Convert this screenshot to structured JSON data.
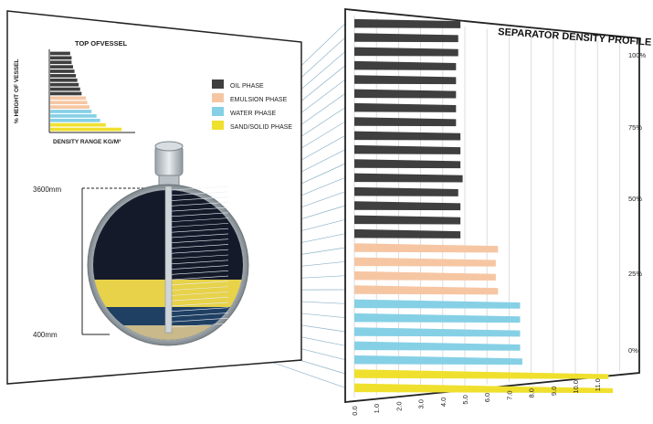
{
  "left_panel": {
    "inset_chart": {
      "title": "TOP OFVESSEL",
      "ylabel": "% HEIGHT OF VESSEL",
      "xlabel": "DENSITY RANGE KG/M³",
      "bar_levels": [
        0.28,
        0.3,
        0.3,
        0.32,
        0.34,
        0.36,
        0.38,
        0.4,
        0.42,
        0.44,
        0.5,
        0.52,
        0.55,
        0.58,
        0.65,
        0.7,
        0.78,
        1.0
      ],
      "bar_phases": [
        "oil",
        "oil",
        "oil",
        "oil",
        "oil",
        "oil",
        "oil",
        "oil",
        "oil",
        "oil",
        "emulsion",
        "emulsion",
        "emulsion",
        "water",
        "water",
        "water",
        "sand",
        "sand"
      ]
    },
    "legend": [
      {
        "label": "OIL PHASE",
        "phase": "oil"
      },
      {
        "label": "EMULSION PHASE",
        "phase": "emulsion"
      },
      {
        "label": "WATER PHASE",
        "phase": "water"
      },
      {
        "label": "SAND/SOLID PHASE",
        "phase": "sand"
      }
    ],
    "vessel": {
      "top_label": "3600mm",
      "bottom_label": "400mm"
    }
  },
  "colors": {
    "oil": "#3f3f3f",
    "emulsion": "#f6c6a3",
    "water": "#86d0e6",
    "sand": "#f0e02e",
    "panel_frame": "#222222",
    "connector": "#8fb4c8"
  },
  "chart_data": {
    "type": "bar",
    "title": "SEPARATOR DENSITY PROFILE",
    "orientation": "horizontal",
    "x_tick_labels": [
      "0.0",
      "1.0",
      "2.0",
      "3.0",
      "4.0",
      "5.0",
      "6.0",
      "7.0",
      "8.0",
      "9.0",
      "10.0",
      "11.0"
    ],
    "y_tick_labels": [
      "100%",
      "75%",
      "50%",
      "25%",
      "0%"
    ],
    "grid": true,
    "bars_top_to_bottom": [
      {
        "phase": "oil",
        "value": 4.8
      },
      {
        "phase": "oil",
        "value": 4.7
      },
      {
        "phase": "oil",
        "value": 4.7
      },
      {
        "phase": "oil",
        "value": 4.6
      },
      {
        "phase": "oil",
        "value": 4.6
      },
      {
        "phase": "oil",
        "value": 4.6
      },
      {
        "phase": "oil",
        "value": 4.6
      },
      {
        "phase": "oil",
        "value": 4.6
      },
      {
        "phase": "oil",
        "value": 4.8
      },
      {
        "phase": "oil",
        "value": 4.8
      },
      {
        "phase": "oil",
        "value": 4.8
      },
      {
        "phase": "oil",
        "value": 4.9
      },
      {
        "phase": "oil",
        "value": 4.7
      },
      {
        "phase": "oil",
        "value": 4.8
      },
      {
        "phase": "oil",
        "value": 4.8
      },
      {
        "phase": "oil",
        "value": 4.8
      },
      {
        "phase": "emulsion",
        "value": 6.5
      },
      {
        "phase": "emulsion",
        "value": 6.4
      },
      {
        "phase": "emulsion",
        "value": 6.4
      },
      {
        "phase": "emulsion",
        "value": 6.5
      },
      {
        "phase": "water",
        "value": 7.5
      },
      {
        "phase": "water",
        "value": 7.5
      },
      {
        "phase": "water",
        "value": 7.5
      },
      {
        "phase": "water",
        "value": 7.5
      },
      {
        "phase": "water",
        "value": 7.6
      },
      {
        "phase": "sand",
        "value": 11.5
      },
      {
        "phase": "sand",
        "value": 11.7
      }
    ]
  }
}
